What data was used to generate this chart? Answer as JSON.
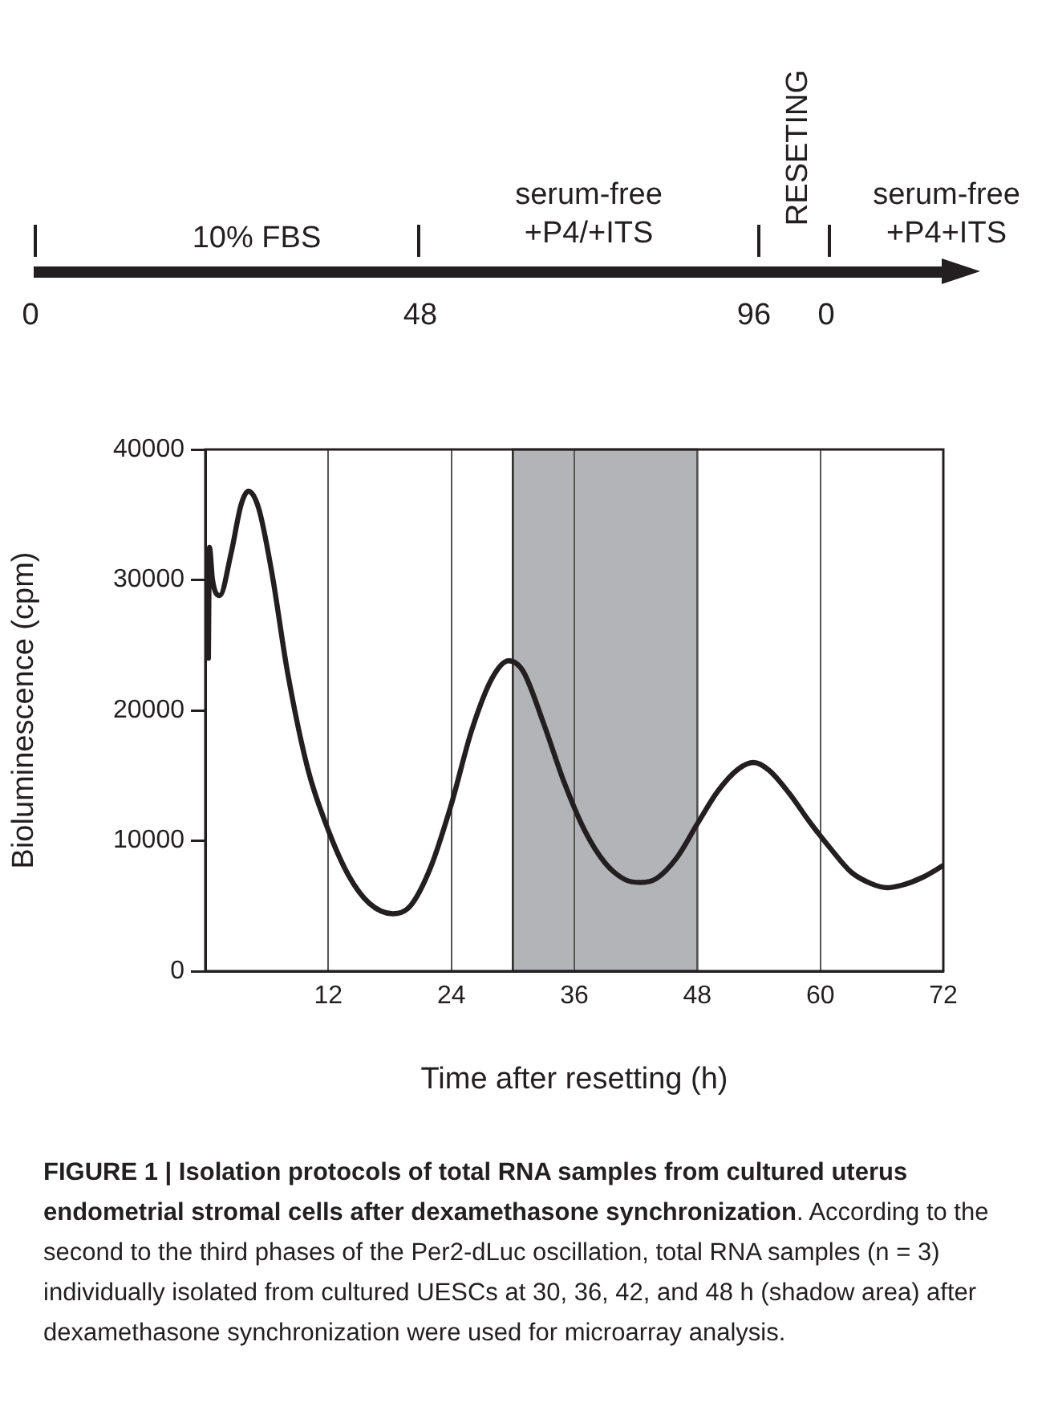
{
  "chart_data": [
    {
      "type": "other",
      "annotations": [
        "10% FBS",
        "serum-free +P4/+ITS",
        "RESETING",
        "serum-free +P4+ITS",
        "0",
        "48",
        "96",
        "0"
      ]
    },
    {
      "type": "line",
      "xlabel": "Time after resetting (h)",
      "ylabel": "Bioluminescence (cpm)",
      "x": [
        0.3,
        0.4,
        0.7,
        1.4,
        2.5,
        3.5,
        4.2,
        5.2,
        6.5,
        8,
        10,
        12,
        14,
        16,
        18.3,
        20,
        22,
        24,
        26,
        28,
        29.6,
        31,
        33,
        35,
        37,
        39,
        41,
        42.5,
        44,
        46,
        48,
        50,
        52,
        53.5,
        55,
        57,
        59,
        61,
        63,
        65,
        66.5,
        68,
        70,
        72
      ],
      "series": [
        {
          "color": "#231f20",
          "values": [
            24000,
            32500,
            30000,
            28800,
            32000,
            35800,
            36800,
            35500,
            30500,
            23000,
            15500,
            10800,
            7300,
            5200,
            4400,
            5000,
            8000,
            12800,
            18500,
            22500,
            23800,
            23000,
            19000,
            14500,
            10800,
            8300,
            7000,
            6800,
            7100,
            8700,
            11300,
            13800,
            15500,
            16000,
            15400,
            13600,
            11400,
            9400,
            7600,
            6700,
            6400,
            6600,
            7200,
            8100
          ]
        }
      ],
      "xlim": [
        0,
        72
      ],
      "xticks": [
        12,
        24,
        36,
        48,
        60,
        72
      ],
      "ylim": [
        0,
        40000
      ],
      "yticks": [
        0,
        10000,
        20000,
        30000,
        40000
      ],
      "grid": "x",
      "legend": false,
      "marker": "none",
      "line_style": "solid",
      "bands": [
        {
          "axis": "x",
          "from": 30,
          "to": 48,
          "color": "#b3b4b8"
        }
      ],
      "annotations": [
        "FIGURE 1 | Isolation protocols of total RNA samples from cultured uterus endometrial stromal cells after dexamethasone synchronization",
        ". According to the second to the third phases of the Per2-dLuc oscillation, total RNA samples (n = 3) individually isolated from cultured UESCs at 30, 36, 42, and 48 h (shadow area) after dexamethasone synchronization were used for microarray analysis."
      ]
    }
  ]
}
